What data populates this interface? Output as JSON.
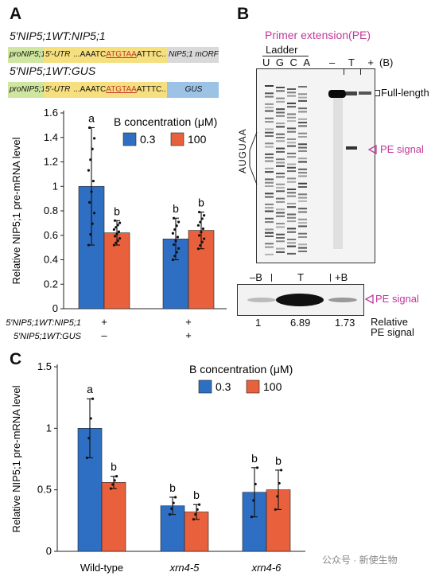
{
  "panelA": {
    "letter": "A",
    "construct1": {
      "title": "5′NIP5;1WT:NIP5;1",
      "segments": [
        "proNIP5;1",
        "5′-UTR",
        "...AAATC",
        "ATGTAA",
        "ATTTC..",
        "NIP5;1 mORF"
      ]
    },
    "construct2": {
      "title": "5′NIP5;1WT:GUS",
      "segments": [
        "proNIP5;1",
        "5′-UTR",
        "...AAATC",
        "ATGTAA",
        "ATTTC..",
        "GUS"
      ]
    },
    "row_labels": [
      "5′NIP5;1WT:NIP5;1",
      "5′NIP5;1WT:GUS"
    ],
    "row1_marks": [
      "+",
      "+"
    ],
    "row2_marks": [
      "–",
      "+"
    ]
  },
  "chart_data": [
    {
      "type": "bar",
      "panel": "A",
      "ylabel": "Relative NIP5;1 pre-mRNA level",
      "ylim": [
        0,
        1.6
      ],
      "yticks": [
        "0",
        "0.2",
        "0.4",
        "0.6",
        "0.8",
        "1",
        "1.2",
        "1.4",
        "1.6"
      ],
      "ytick_values": [
        0,
        0.2,
        0.4,
        0.6,
        0.8,
        1.0,
        1.2,
        1.4,
        1.6
      ],
      "legend_title": "B concentration (μM)",
      "legend_position": "top-right",
      "categories": [
        "5′NIP5;1WT:NIP5;1",
        "5′NIP5;1WT:GUS"
      ],
      "series": [
        {
          "name": "0.3",
          "color": "#2e6fc4",
          "values": [
            1.0,
            0.57
          ],
          "err": [
            0.48,
            0.17
          ]
        },
        {
          "name": "100",
          "color": "#e8603c",
          "values": [
            0.62,
            0.64
          ],
          "err": [
            0.1,
            0.15
          ]
        }
      ],
      "letters": [
        [
          "a",
          "b"
        ],
        [
          "b",
          "b"
        ]
      ]
    },
    {
      "type": "bar",
      "panel": "C",
      "ylabel": "Relative NIP5;1 pre-mRNA level",
      "ylim": [
        0,
        1.5
      ],
      "yticks": [
        "0",
        "0.5",
        "1",
        "1.5"
      ],
      "ytick_values": [
        0,
        0.5,
        1.0,
        1.5
      ],
      "legend_title": "B concentration (μM)",
      "legend_position": "top-right",
      "categories": [
        "Wild-type",
        "xrn4-5",
        "xrn4-6"
      ],
      "series": [
        {
          "name": "0.3",
          "color": "#2e6fc4",
          "values": [
            1.0,
            0.37,
            0.48
          ],
          "err": [
            0.24,
            0.07,
            0.2
          ]
        },
        {
          "name": "100",
          "color": "#e8603c",
          "values": [
            0.56,
            0.32,
            0.5
          ],
          "err": [
            0.05,
            0.06,
            0.16
          ]
        }
      ],
      "letters": [
        [
          "a",
          "b"
        ],
        [
          "b",
          "b"
        ],
        [
          "b",
          "b"
        ]
      ]
    }
  ],
  "panelB": {
    "letter": "B",
    "title": "Primer extension(PE)",
    "ladder_label": "Ladder",
    "ladder_lanes": [
      "U",
      "G",
      "C",
      "A"
    ],
    "sample_lanes": [
      "–",
      "T",
      "+"
    ],
    "lane_suffix": "(B)",
    "seq_label": "AUGUAA",
    "fulllength_label": "Full-length",
    "pe_signal_label": "PE signal",
    "bottom_lanes": [
      "–B",
      "T",
      "+B"
    ],
    "bottom_values": [
      "1",
      "6.89",
      "1.73"
    ],
    "relative_label": "Relative\nPE signal"
  },
  "panelC": {
    "letter": "C"
  },
  "watermark": "公众号 · 新使生物"
}
